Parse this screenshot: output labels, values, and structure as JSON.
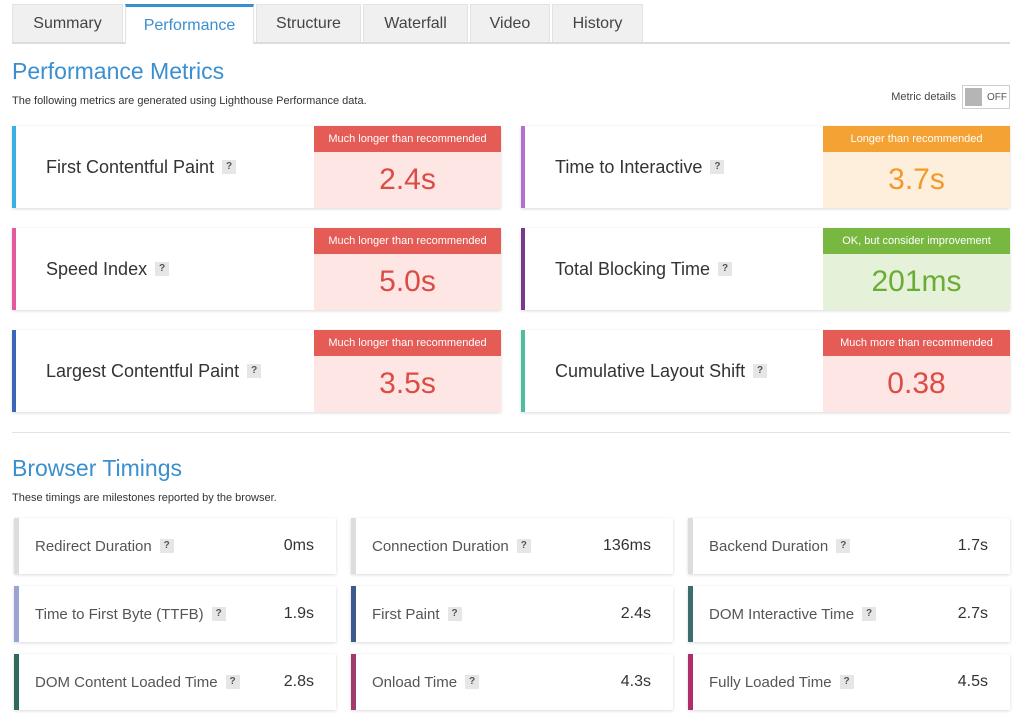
{
  "tabs": [
    "Summary",
    "Performance",
    "Structure",
    "Waterfall",
    "Video",
    "History"
  ],
  "active_tab": "Performance",
  "performance": {
    "title": "Performance Metrics",
    "description": "The following metrics are generated using Lighthouse Performance data.",
    "metric_details_label": "Metric details",
    "toggle_state": "OFF",
    "help_glyph": "?",
    "metrics": [
      {
        "name": "First Contentful Paint",
        "badge": "Much longer than recommended",
        "value": "2.4s",
        "status": "red",
        "accent": "#3ab0e2"
      },
      {
        "name": "Time to Interactive",
        "badge": "Longer than recommended",
        "value": "3.7s",
        "status": "orange",
        "accent": "#b46fd2"
      },
      {
        "name": "Speed Index",
        "badge": "Much longer than recommended",
        "value": "5.0s",
        "status": "red",
        "accent": "#e35b9d"
      },
      {
        "name": "Total Blocking Time",
        "badge": "OK, but consider improvement",
        "value": "201ms",
        "status": "green",
        "accent": "#7a3a8c"
      },
      {
        "name": "Largest Contentful Paint",
        "badge": "Much longer than recommended",
        "value": "3.5s",
        "status": "red",
        "accent": "#3e66b8"
      },
      {
        "name": "Cumulative Layout Shift",
        "badge": "Much more than recommended",
        "value": "0.38",
        "status": "red",
        "accent": "#4fbea0"
      }
    ],
    "status_colors": {
      "red": "#e55b55",
      "orange": "#f4a233",
      "green": "#79b840"
    }
  },
  "browser": {
    "title": "Browser Timings",
    "description": "These timings are milestones reported by the browser.",
    "timings": [
      {
        "name": "Redirect Duration",
        "value": "0ms",
        "accent": "#dddddd"
      },
      {
        "name": "Connection Duration",
        "value": "136ms",
        "accent": "#dddddd"
      },
      {
        "name": "Backend Duration",
        "value": "1.7s",
        "accent": "#dddddd"
      },
      {
        "name": "Time to First Byte (TTFB)",
        "value": "1.9s",
        "accent": "#9aa3d4"
      },
      {
        "name": "First Paint",
        "value": "2.4s",
        "accent": "#3c5a8c"
      },
      {
        "name": "DOM Interactive Time",
        "value": "2.7s",
        "accent": "#3e6b6b"
      },
      {
        "name": "DOM Content Loaded Time",
        "value": "2.8s",
        "accent": "#2f6b5c"
      },
      {
        "name": "Onload Time",
        "value": "4.3s",
        "accent": "#a23b6d"
      },
      {
        "name": "Fully Loaded Time",
        "value": "4.5s",
        "accent": "#b02d6b"
      }
    ]
  }
}
